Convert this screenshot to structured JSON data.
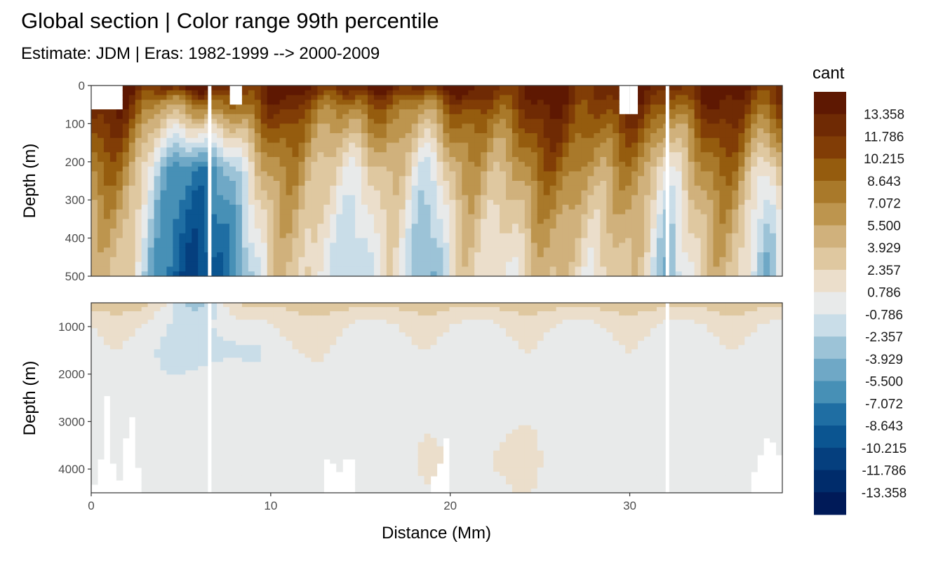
{
  "chart_data": {
    "type": "heatmap",
    "title": "Global section | Color range 99th percentile",
    "subtitle": "Estimate: JDM  | Eras: 1982-1999 --> 2000-2009",
    "xlabel": "Distance (Mm)",
    "ylabel": "Depth (m)",
    "xlim": [
      0,
      38.5
    ],
    "x_ticks": [
      "0",
      "10",
      "20",
      "30"
    ],
    "panels": [
      {
        "ylim": [
          0,
          500
        ],
        "y_ticks": [
          "0",
          "100",
          "200",
          "300",
          "400",
          "500"
        ]
      },
      {
        "ylim": [
          500,
          4500
        ],
        "y_ticks": [
          "1000",
          "2000",
          "3000",
          "4000"
        ]
      }
    ],
    "gaps_x": [
      6.6,
      32.1
    ],
    "grid": true,
    "legend": {
      "title": "cant",
      "position": "right",
      "labels": [
        "13.358",
        "11.786",
        "10.215",
        "8.643",
        "7.072",
        "5.500",
        "3.929",
        "2.357",
        "0.786",
        "-0.786",
        "-2.357",
        "-3.929",
        "-5.500",
        "-7.072",
        "-8.643",
        "-10.215",
        "-11.786",
        "-13.358"
      ],
      "colors": [
        "#5e1802",
        "#6f2a04",
        "#813d06",
        "#955c0e",
        "#a9792a",
        "#bd954e",
        "#d0b17c",
        "#dfc8a0",
        "#ebdecb",
        "#e8eaea",
        "#c9dde8",
        "#9cc3d7",
        "#6fa8c6",
        "#4790b6",
        "#1f6ea3",
        "#0b5591",
        "#053f7e",
        "#002c6b",
        "#001a58"
      ]
    }
  }
}
